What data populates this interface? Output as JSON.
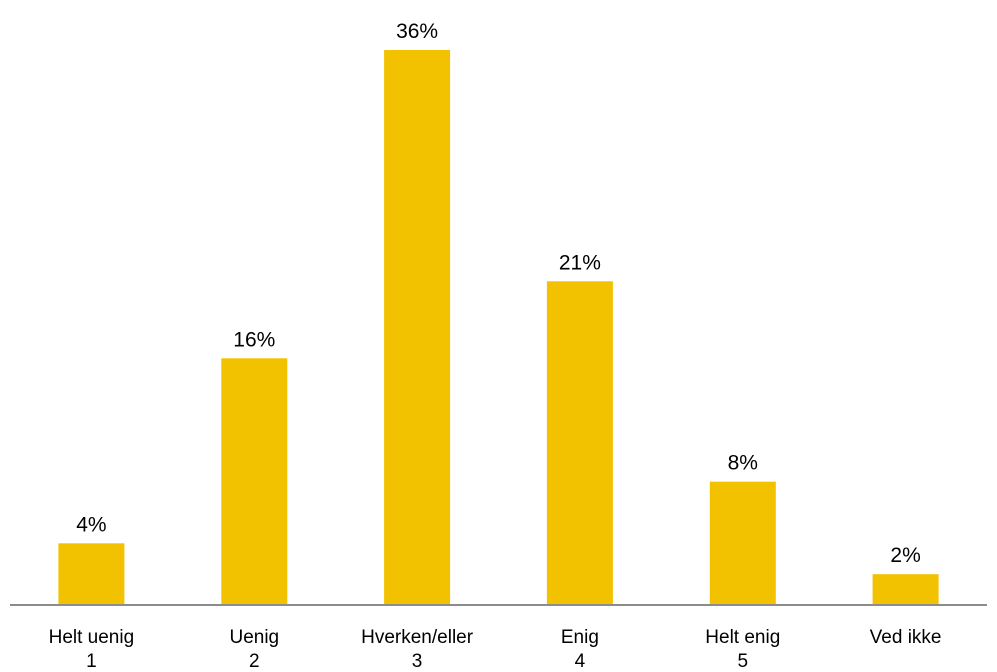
{
  "chart_data": {
    "type": "bar",
    "categories": [
      [
        "Helt uenig",
        "1"
      ],
      [
        "Uenig",
        "2"
      ],
      [
        "Hverken/eller",
        "3"
      ],
      [
        "Enig",
        "4"
      ],
      [
        "Helt enig",
        "5"
      ],
      [
        "Ved ikke",
        ""
      ]
    ],
    "values": [
      4,
      16,
      36,
      21,
      8,
      2
    ],
    "data_labels": [
      "4%",
      "16%",
      "36%",
      "21%",
      "8%",
      "2%"
    ],
    "unit": "%",
    "title": "",
    "xlabel": "",
    "ylabel": "",
    "ylim": [
      0,
      36
    ],
    "grid": false,
    "legend": "none",
    "bar_color": "#F2C100",
    "axis_color": "#8C8C8C"
  }
}
